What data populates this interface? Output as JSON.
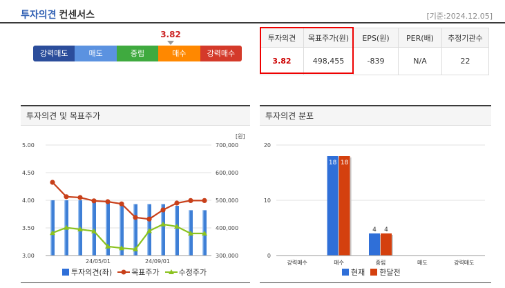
{
  "header": {
    "title_main": "투자의견",
    "title_sub": "컨센서스",
    "base_date": "[기준:2024.12.05]"
  },
  "opinion_scale": {
    "labels": [
      "강력매도",
      "매도",
      "중립",
      "매수",
      "강력매수"
    ],
    "colors": [
      "#2b4d9b",
      "#5b92e0",
      "#3faa3f",
      "#ff8800",
      "#d43a2a"
    ],
    "current_value": "3.82"
  },
  "consensus_table": {
    "headers": [
      "투자의견",
      "목표주가(원)",
      "EPS(원)",
      "PER(배)",
      "추정기관수"
    ],
    "values": [
      "3.82",
      "498,455",
      "-839",
      "N/A",
      "22"
    ]
  },
  "left_chart": {
    "title": "투자의견 및 목표주가",
    "left_ticks": [
      "5.00",
      "4.50",
      "4.00",
      "3.50",
      "3.00"
    ],
    "right_unit": "[원]",
    "right_ticks": [
      "700,000",
      "600,000",
      "500,000",
      "400,000",
      "300,000"
    ],
    "x_labels": [
      "24/05/01",
      "24/09/01"
    ],
    "legend": [
      "투자의견(좌)",
      "목표주가",
      "수정주가"
    ]
  },
  "right_chart": {
    "title": "투자의견 분포",
    "y_ticks": [
      "20",
      "10",
      "0"
    ],
    "categories": [
      "강력매수",
      "매수",
      "중립",
      "매도",
      "강력매도"
    ],
    "bar_labels_current": [
      "",
      "18",
      "4",
      "",
      ""
    ],
    "bar_labels_prev": [
      "",
      "18",
      "4",
      "",
      ""
    ],
    "legend": [
      "현재",
      "한달전"
    ]
  },
  "chart_data": [
    {
      "type": "bar",
      "series": [
        {
          "name": "투자의견(좌)",
          "axis": "left",
          "values": [
            4.0,
            4.0,
            4.0,
            3.97,
            3.97,
            3.95,
            3.93,
            3.93,
            3.93,
            3.9,
            3.82,
            3.82
          ]
        },
        {
          "name": "목표주가",
          "type": "line",
          "axis": "right",
          "values": [
            565000,
            513000,
            510000,
            498000,
            495000,
            487000,
            438000,
            432000,
            465000,
            490000,
            499000,
            499000
          ]
        },
        {
          "name": "수정주가",
          "type": "line",
          "axis": "right",
          "values": [
            382000,
            401000,
            395000,
            388000,
            333000,
            327000,
            323000,
            389000,
            413000,
            405000,
            380000,
            380000
          ]
        }
      ],
      "x_labels": [
        "24/05/01",
        "24/09/01"
      ],
      "ylim_left": [
        3.0,
        5.0
      ],
      "ylim_right": [
        300000,
        700000
      ],
      "title": "투자의견 및 목표주가",
      "ylabel_right": "[원]",
      "legend": "bottom"
    },
    {
      "type": "bar",
      "categories": [
        "강력매수",
        "매수",
        "중립",
        "매도",
        "강력매도"
      ],
      "series": [
        {
          "name": "현재",
          "values": [
            0,
            18,
            4,
            0,
            0
          ]
        },
        {
          "name": "한달전",
          "values": [
            0,
            18,
            4,
            0,
            0
          ]
        }
      ],
      "ylim": [
        0,
        20
      ],
      "title": "투자의견 분포",
      "legend": "bottom"
    }
  ],
  "colors": {
    "opinion_bar": "#3e7fd6",
    "target_price": "#c8401a",
    "adjusted_price": "#8bc21f",
    "current": "#2f6fd8",
    "prev": "#d4400e"
  }
}
